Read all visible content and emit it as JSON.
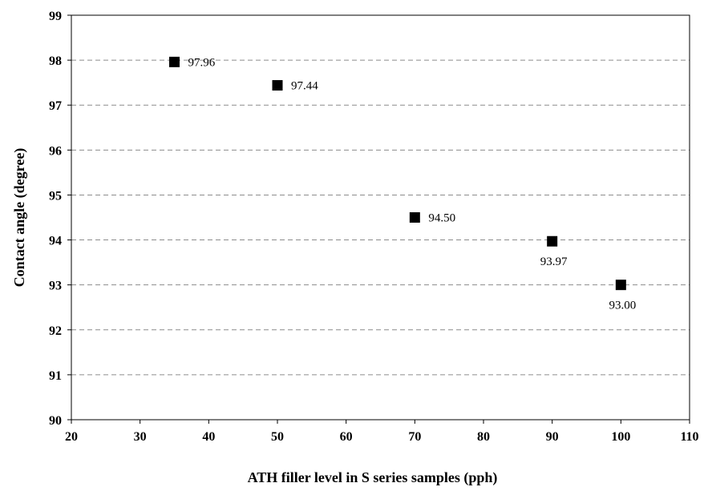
{
  "chart_data": {
    "type": "scatter",
    "title": "",
    "xlabel": "ATH filler level in S series samples (pph)",
    "ylabel": "Contact angle (degree)",
    "xlim": [
      20,
      110
    ],
    "ylim": [
      90,
      99
    ],
    "x_ticks": [
      "20",
      "30",
      "40",
      "50",
      "60",
      "70",
      "80",
      "90",
      "100",
      "110"
    ],
    "y_ticks": [
      "90",
      "91",
      "92",
      "93",
      "94",
      "95",
      "96",
      "97",
      "98",
      "99"
    ],
    "grid": "horizontal dashed",
    "legend": "none",
    "marker": "square",
    "marker_color": "#000000",
    "points": [
      {
        "x": 35,
        "y": 97.96,
        "label": "97.96",
        "label_side": "right"
      },
      {
        "x": 50,
        "y": 97.44,
        "label": "97.44",
        "label_side": "right"
      },
      {
        "x": 70,
        "y": 94.5,
        "label": "94.50",
        "label_side": "right"
      },
      {
        "x": 90,
        "y": 93.97,
        "label": "93.97",
        "label_side": "below"
      },
      {
        "x": 100,
        "y": 93.0,
        "label": "93.00",
        "label_side": "below"
      }
    ]
  }
}
